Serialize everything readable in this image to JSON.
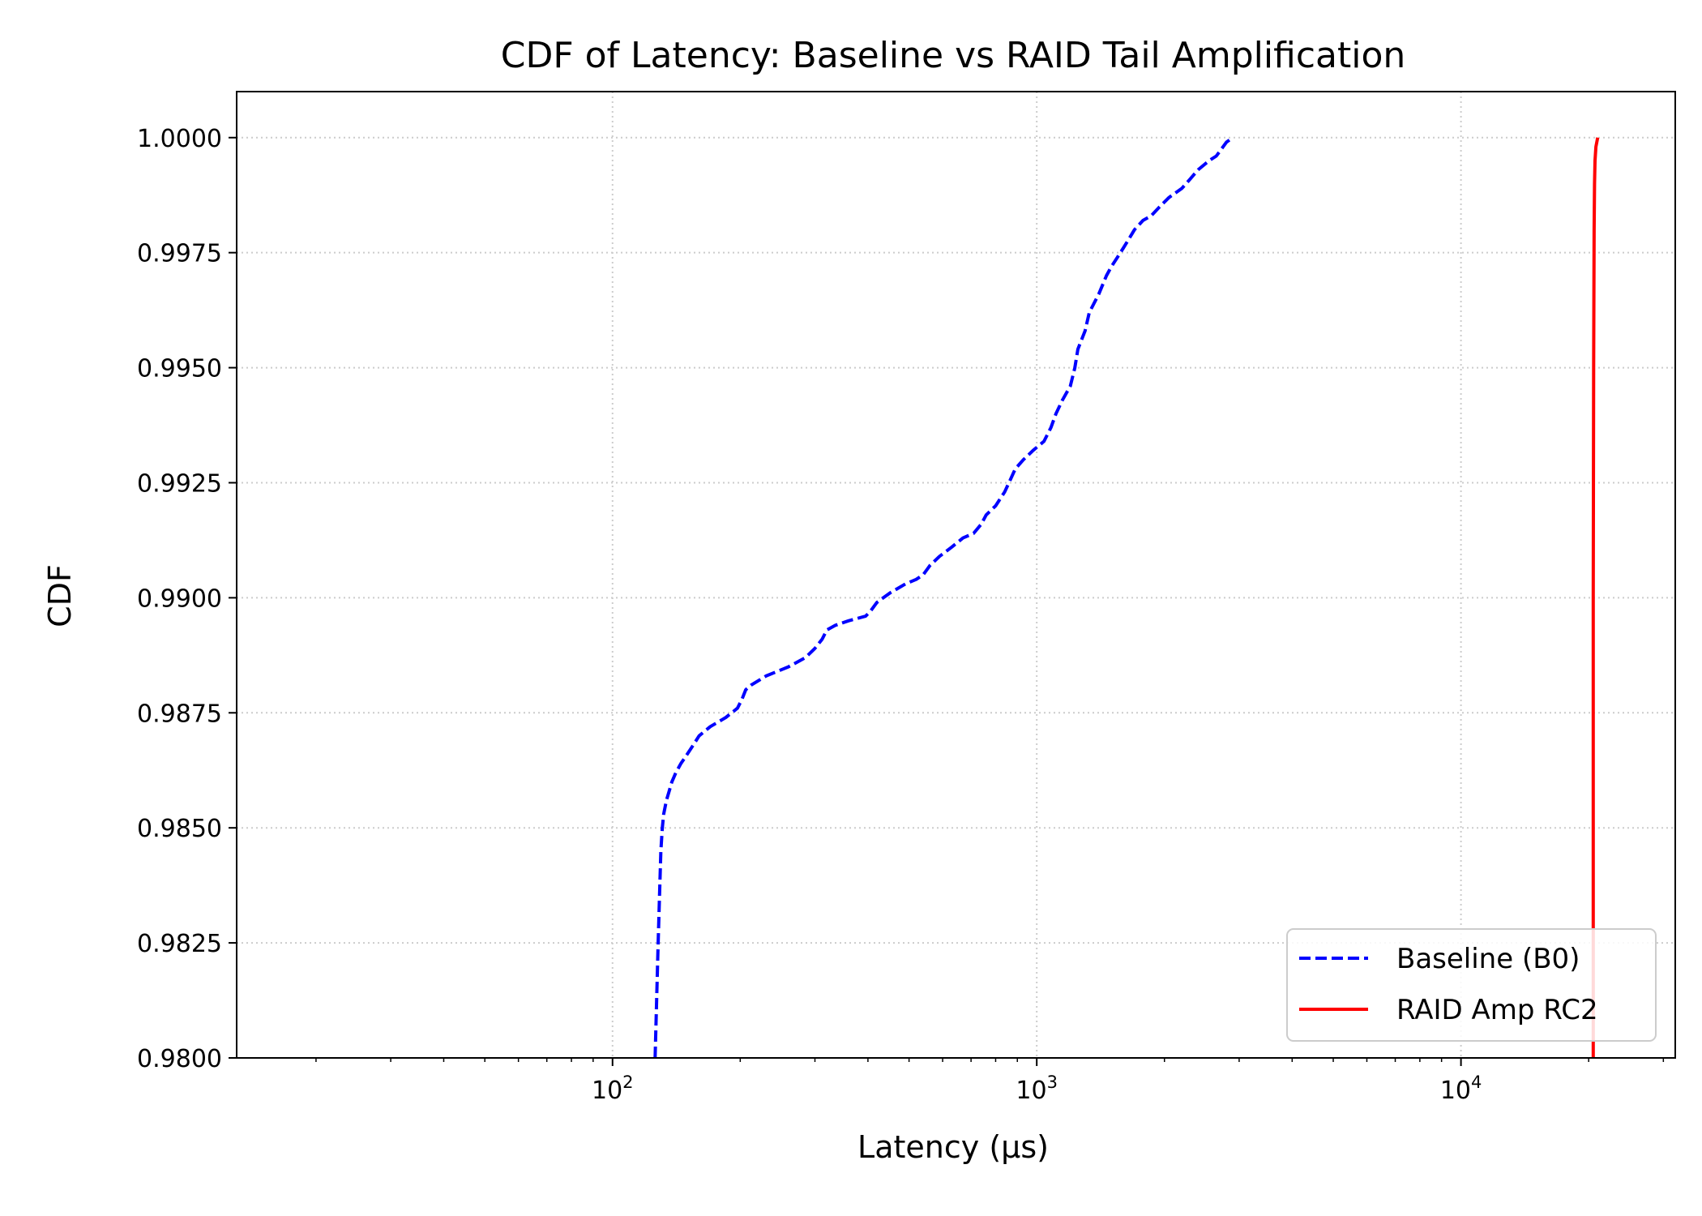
{
  "chart_data": {
    "type": "line",
    "title": "CDF of Latency: Baseline vs RAID Tail Amplification",
    "xlabel": "Latency (µs)",
    "ylabel": "CDF",
    "xscale": "log",
    "xlim": [
      13,
      32000
    ],
    "ylim": [
      0.98,
      1.001
    ],
    "xticks": [
      {
        "value": 100,
        "base": "10",
        "exp": "2"
      },
      {
        "value": 1000,
        "base": "10",
        "exp": "3"
      },
      {
        "value": 10000,
        "base": "10",
        "exp": "4"
      }
    ],
    "yticks": [
      {
        "value": 0.98,
        "label": "0.9800"
      },
      {
        "value": 0.9825,
        "label": "0.9825"
      },
      {
        "value": 0.985,
        "label": "0.9850"
      },
      {
        "value": 0.9875,
        "label": "0.9875"
      },
      {
        "value": 0.99,
        "label": "0.9900"
      },
      {
        "value": 0.9925,
        "label": "0.9925"
      },
      {
        "value": 0.995,
        "label": "0.9950"
      },
      {
        "value": 0.9975,
        "label": "0.9975"
      },
      {
        "value": 1.0,
        "label": "1.0000"
      }
    ],
    "grid": true,
    "legend_position": "lower right",
    "series": [
      {
        "name": "Baseline (B0)",
        "color": "#0000ff",
        "style": "dashed",
        "x": [
          126,
          127,
          128,
          129,
          130,
          131,
          132,
          134,
          136,
          138,
          141,
          145,
          150,
          155,
          160,
          170,
          185,
          197,
          202,
          206,
          212,
          230,
          260,
          285,
          300,
          312,
          320,
          335,
          360,
          395,
          405,
          420,
          450,
          490,
          520,
          540,
          560,
          590,
          610,
          630,
          670,
          710,
          740,
          760,
          800,
          840,
          870,
          890,
          930,
          980,
          1040,
          1080,
          1110,
          1150,
          1200,
          1230,
          1250,
          1300,
          1330,
          1400,
          1460,
          1500,
          1550,
          1600,
          1650,
          1700,
          1780,
          1860,
          1950,
          2050,
          2200,
          2300,
          2400,
          2550,
          2650,
          2750,
          2800,
          2900
        ],
        "y": [
          0.98,
          0.9812,
          0.9824,
          0.9835,
          0.9845,
          0.985,
          0.9853,
          0.9856,
          0.9858,
          0.986,
          0.9862,
          0.9864,
          0.9866,
          0.9868,
          0.987,
          0.9872,
          0.9874,
          0.9876,
          0.9878,
          0.988,
          0.9881,
          0.9883,
          0.9885,
          0.9887,
          0.9889,
          0.9891,
          0.9893,
          0.9894,
          0.9895,
          0.9896,
          0.9897,
          0.9899,
          0.9901,
          0.9903,
          0.9904,
          0.9905,
          0.9907,
          0.9909,
          0.991,
          0.9911,
          0.9913,
          0.9914,
          0.9916,
          0.9918,
          0.992,
          0.9923,
          0.9926,
          0.9928,
          0.993,
          0.9932,
          0.9934,
          0.9937,
          0.994,
          0.9943,
          0.9946,
          0.995,
          0.9954,
          0.9958,
          0.9962,
          0.9966,
          0.997,
          0.9972,
          0.9974,
          0.9976,
          0.9978,
          0.998,
          0.9982,
          0.9983,
          0.9985,
          0.9987,
          0.9989,
          0.9991,
          0.9993,
          0.9995,
          0.9996,
          0.9998,
          0.9999,
          1.0
        ]
      },
      {
        "name": "RAID Amp RC2",
        "color": "#ff0000",
        "style": "solid",
        "x": [
          20500,
          20500,
          20550,
          20600,
          20650,
          20700,
          20800,
          21000
        ],
        "y": [
          0.98,
          0.99,
          0.995,
          0.998,
          0.999,
          0.9995,
          0.9998,
          1.0
        ]
      }
    ]
  }
}
